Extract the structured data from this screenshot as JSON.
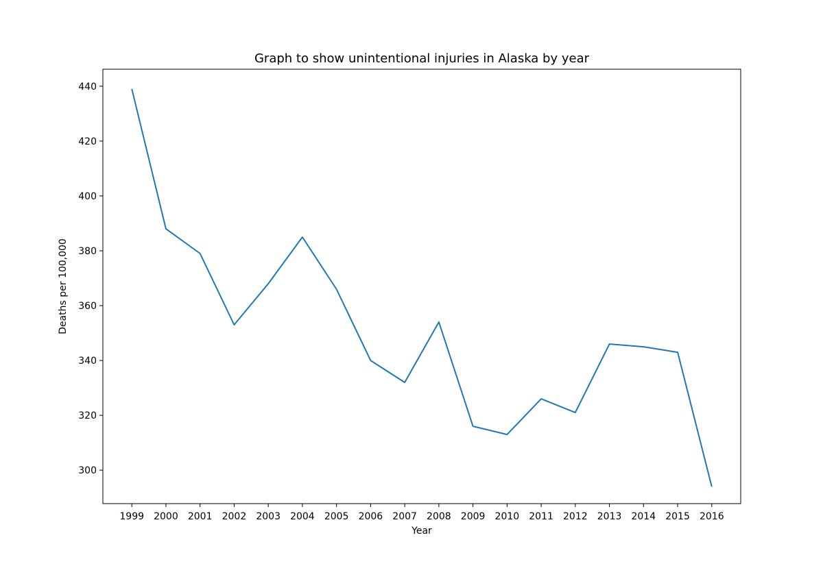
{
  "chart_data": {
    "type": "line",
    "title": "Graph to show unintentional injuries in Alaska by year",
    "xlabel": "Year",
    "ylabel": "Deaths per 100,000",
    "categories": [
      "1999",
      "2000",
      "2001",
      "2002",
      "2003",
      "2004",
      "2005",
      "2006",
      "2007",
      "2008",
      "2009",
      "2010",
      "2011",
      "2012",
      "2013",
      "2014",
      "2015",
      "2016"
    ],
    "series": [
      {
        "values": [
          439,
          388,
          379,
          353,
          368,
          385,
          366,
          340,
          332,
          354,
          316,
          313,
          326,
          321,
          346,
          345,
          343,
          294
        ],
        "color": "#1f77b4"
      }
    ],
    "ylim": [
      287.8,
      446.2
    ],
    "yticks": [
      300,
      320,
      340,
      360,
      380,
      400,
      420,
      440
    ],
    "grid": false,
    "legend": "none"
  }
}
